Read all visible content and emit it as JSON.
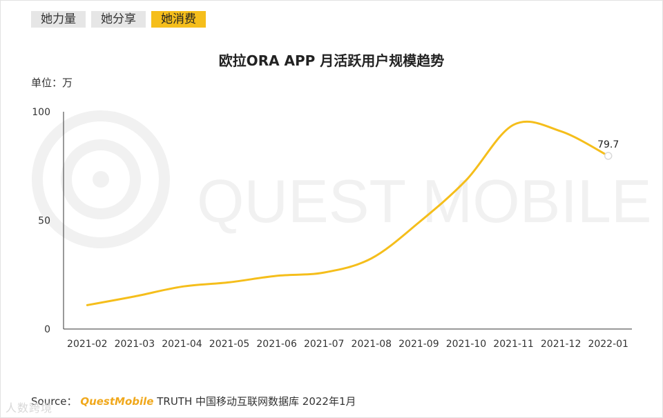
{
  "tabs": [
    {
      "label": "她力量",
      "active": false
    },
    {
      "label": "她分享",
      "active": false
    },
    {
      "label": "她消费",
      "active": true
    }
  ],
  "unit_label": "单位：万",
  "watermark_text": "QUEST MOBILE",
  "source": {
    "prefix": "Source：",
    "brand": "QuestMobile",
    "rest": "TRUTH 中国移动互联网数据库 2022年1月"
  },
  "corner_watermark": "人数跨境",
  "colors": {
    "line": "#f5be1b",
    "axis": "#333333",
    "tab_active": "#f5be1b"
  },
  "chart_data": {
    "type": "line",
    "title": "欧拉ORA APP 月活跃用户规模趋势",
    "xlabel": "",
    "ylabel": "",
    "categories": [
      "2021-02",
      "2021-03",
      "2021-04",
      "2021-05",
      "2021-06",
      "2021-07",
      "2021-08",
      "2021-09",
      "2021-10",
      "2021-11",
      "2021-12",
      "2022-01"
    ],
    "series": [
      {
        "values": [
          11.0,
          15.0,
          19.5,
          21.5,
          24.5,
          26.0,
          32.5,
          49.0,
          68.5,
          94.0,
          91.0,
          79.7
        ]
      }
    ],
    "data_labels": [
      {
        "index": 11,
        "text": "79.7"
      }
    ],
    "yticks": [
      0,
      50,
      100
    ],
    "ylim": [
      0,
      100
    ],
    "grid": false,
    "legend": "none"
  }
}
